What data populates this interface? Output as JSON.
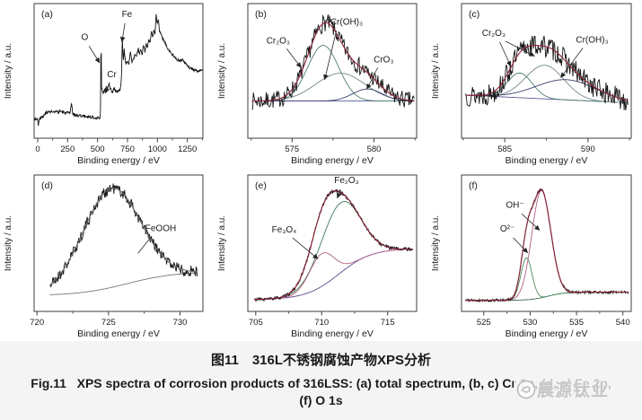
{
  "caption": {
    "zh": "图11　316L不锈钢腐蚀产物XPS分析",
    "en_line1": "Fig.11   XPS spectra of corrosion products of 316LSS: (a) total spectrum, (b, c) Cr 2p, (d, e) Fe 2p,",
    "en_line2": "(f) O 1s"
  },
  "watermark": {
    "text": "晨源钛业",
    "logo": "swirl-logo"
  },
  "chart_data": [
    {
      "id": "a",
      "type": "line",
      "panel_label": "(a)",
      "row": 1,
      "xlabel": "Binding energy / eV",
      "ylabel": "Intensity / a.u.",
      "xlim": [
        -30,
        1380
      ],
      "ylim": [
        -0.05,
        1.0
      ],
      "xticks": [
        0,
        250,
        500,
        750,
        1000,
        1250
      ],
      "xticks_minor": [
        125,
        375,
        625,
        875,
        1125,
        1375
      ],
      "data_color": "#141414",
      "noise": 0.012,
      "seed": 3,
      "samples": 440,
      "anchors": [
        [
          0,
          0.1
        ],
        [
          6,
          0.05
        ],
        [
          12,
          0.09
        ],
        [
          25,
          0.11
        ],
        [
          50,
          0.12
        ],
        [
          70,
          0.155
        ],
        [
          90,
          0.15
        ],
        [
          110,
          0.16
        ],
        [
          130,
          0.15
        ],
        [
          150,
          0.155
        ],
        [
          170,
          0.15
        ],
        [
          190,
          0.165
        ],
        [
          210,
          0.15
        ],
        [
          230,
          0.148
        ],
        [
          250,
          0.145
        ],
        [
          270,
          0.143
        ],
        [
          283,
          0.23
        ],
        [
          292,
          0.14
        ],
        [
          320,
          0.13
        ],
        [
          360,
          0.125
        ],
        [
          400,
          0.12
        ],
        [
          450,
          0.115
        ],
        [
          490,
          0.11
        ],
        [
          515,
          0.105
        ],
        [
          524,
          0.12
        ],
        [
          529,
          0.78
        ],
        [
          534,
          0.34
        ],
        [
          545,
          0.3
        ],
        [
          558,
          0.32
        ],
        [
          572,
          0.355
        ],
        [
          582,
          0.33
        ],
        [
          596,
          0.37
        ],
        [
          608,
          0.33
        ],
        [
          625,
          0.31
        ],
        [
          640,
          0.34
        ],
        [
          655,
          0.31
        ],
        [
          672,
          0.315
        ],
        [
          690,
          0.33
        ],
        [
          700,
          0.42
        ],
        [
          707,
          0.73
        ],
        [
          711,
          0.62
        ],
        [
          716,
          0.56
        ],
        [
          722,
          0.66
        ],
        [
          727,
          0.585
        ],
        [
          736,
          0.53
        ],
        [
          748,
          0.55
        ],
        [
          760,
          0.525
        ],
        [
          775,
          0.62
        ],
        [
          786,
          0.55
        ],
        [
          800,
          0.565
        ],
        [
          812,
          0.6
        ],
        [
          825,
          0.575
        ],
        [
          840,
          0.66
        ],
        [
          850,
          0.6
        ],
        [
          860,
          0.645
        ],
        [
          872,
          0.605
        ],
        [
          884,
          0.68
        ],
        [
          896,
          0.625
        ],
        [
          906,
          0.7
        ],
        [
          917,
          0.655
        ],
        [
          927,
          0.72
        ],
        [
          938,
          0.685
        ],
        [
          950,
          0.78
        ],
        [
          960,
          0.73
        ],
        [
          970,
          0.8
        ],
        [
          980,
          0.75
        ],
        [
          989,
          0.92
        ],
        [
          998,
          0.85
        ],
        [
          1008,
          0.87
        ],
        [
          1016,
          0.79
        ],
        [
          1028,
          0.77
        ],
        [
          1042,
          0.73
        ],
        [
          1058,
          0.705
        ],
        [
          1078,
          0.665
        ],
        [
          1098,
          0.635
        ],
        [
          1125,
          0.605
        ],
        [
          1155,
          0.575
        ],
        [
          1185,
          0.555
        ],
        [
          1210,
          0.56
        ],
        [
          1240,
          0.525
        ],
        [
          1270,
          0.5
        ],
        [
          1300,
          0.485
        ],
        [
          1330,
          0.475
        ],
        [
          1350,
          0.48
        ]
      ],
      "annotations": [
        {
          "text": "O",
          "tx": 0.3,
          "ty": 0.27,
          "lines": [
            {
              "x1": 0.325,
              "y1": 0.315,
              "x2": 0.388,
              "y2": 0.44,
              "arrow": true
            }
          ]
        },
        {
          "text": "Fe",
          "tx": 0.55,
          "ty": 0.1,
          "lines": [
            {
              "x1": 0.538,
              "y1": 0.145,
              "x2": 0.52,
              "y2": 0.285,
              "arrow": true
            }
          ]
        },
        {
          "text": "Cr",
          "tx": 0.46,
          "ty": 0.545,
          "lines": [
            {
              "x1": 0.448,
              "y1": 0.585,
              "x2": 0.422,
              "y2": 0.665,
              "arrow": true
            }
          ]
        }
      ]
    },
    {
      "id": "b",
      "type": "line",
      "panel_label": "(b)",
      "row": 1,
      "xlabel": "Binding energy / eV",
      "ylabel": "Intensity / a.u.",
      "xlim": [
        572.3,
        582.6
      ],
      "ylim": [
        -0.3,
        1.15
      ],
      "xticks": [
        575,
        580
      ],
      "xticks_minor": [
        572.5,
        577.5,
        582.5
      ],
      "x_domain": [
        572.55,
        582.45
      ],
      "data_color": "#141414",
      "noise": 0.095,
      "seed": 7,
      "samples": 215,
      "envelope_color": "#8c2236",
      "baseline": {
        "kind": "line",
        "y0": 0.1,
        "y1": 0.1,
        "color": "#5a5f95"
      },
      "peaks": [
        {
          "name": "Cr2O3",
          "center": 576.9,
          "amp": 0.6,
          "sigma": 0.95,
          "color": "#4e7d74"
        },
        {
          "name": "Cr(OH)3",
          "center": 577.95,
          "amp": 0.3,
          "sigma": 1.5,
          "color": "#74898a"
        },
        {
          "name": "CrO3",
          "center": 579.6,
          "amp": 0.13,
          "sigma": 0.9,
          "color": "#3c4070"
        }
      ],
      "annotations": [
        {
          "text": "Cr₂O₃",
          "tx": 0.18,
          "ty": 0.295,
          "lines": [
            {
              "x1": 0.23,
              "y1": 0.335,
              "x2": 0.315,
              "y2": 0.475,
              "arrow": true
            }
          ]
        },
        {
          "text": "Cr(OH)₃",
          "tx": 0.585,
          "ty": 0.155,
          "lines": [
            {
              "x1": 0.525,
              "y1": 0.2,
              "x2": 0.455,
              "y2": 0.565,
              "arrow": true
            }
          ]
        },
        {
          "text": "CrO₃",
          "tx": 0.805,
          "ty": 0.435,
          "lines": [
            {
              "x1": 0.77,
              "y1": 0.475,
              "x2": 0.705,
              "y2": 0.635,
              "arrow": true
            }
          ]
        }
      ]
    },
    {
      "id": "c",
      "type": "line",
      "panel_label": "(c)",
      "row": 1,
      "xlabel": "Binding energy / eV",
      "ylabel": "Intensity / a.u.",
      "xlim": [
        582.4,
        592.6
      ],
      "ylim": [
        -0.28,
        0.92
      ],
      "xticks": [
        585,
        590
      ],
      "xticks_minor": [
        582.5,
        587.5,
        592.5
      ],
      "x_domain": [
        582.65,
        592.4
      ],
      "data_color": "#141414",
      "noise": 0.1,
      "seed": 13,
      "samples": 215,
      "envelope_color": "#8c2236",
      "baseline": {
        "kind": "line",
        "y0": 0.105,
        "y1": 0.035,
        "color": "#5a5f95"
      },
      "peaks": [
        {
          "name": "Cr2O3",
          "center": 585.9,
          "amp": 0.22,
          "sigma": 0.75,
          "color": "#4e7d74"
        },
        {
          "name": "Cr2O3b",
          "center": 587.4,
          "amp": 0.3,
          "sigma": 1.15,
          "color": "#74898a"
        },
        {
          "name": "Cr(OH)3",
          "center": 588.7,
          "amp": 0.18,
          "sigma": 1.8,
          "color": "#3c4070"
        }
      ],
      "annotations": [
        {
          "text": "Cr₂O₃",
          "tx": 0.19,
          "ty": 0.24,
          "lines": [
            {
              "x1": 0.225,
              "y1": 0.285,
              "x2": 0.29,
              "y2": 0.465,
              "arrow": true
            },
            {
              "x1": 0.26,
              "y1": 0.28,
              "x2": 0.43,
              "y2": 0.39,
              "arrow": true
            }
          ]
        },
        {
          "text": "Cr(OH)₃",
          "tx": 0.77,
          "ty": 0.29,
          "lines": [
            {
              "x1": 0.715,
              "y1": 0.33,
              "x2": 0.585,
              "y2": 0.55,
              "arrow": true
            }
          ]
        }
      ]
    },
    {
      "id": "d",
      "type": "line",
      "panel_label": "(d)",
      "row": 2,
      "xlabel": "Binding energy / eV",
      "ylabel": "Intensity / a.u.",
      "xlim": [
        719.8,
        731.6
      ],
      "ylim": [
        -0.08,
        1.05
      ],
      "xticks": [
        720,
        725,
        730
      ],
      "xticks_minor": [
        722.5,
        727.5
      ],
      "x_domain": [
        720.9,
        731.2
      ],
      "data_color": "#141414",
      "noise": 0.048,
      "seed": 21,
      "samples": 260,
      "envelope_color": "#6e6e6e",
      "baseline": {
        "kind": "sigmoid",
        "y0": 0.05,
        "y1": 0.25,
        "x0": 726.3,
        "w": 1.7,
        "color": "#787878"
      },
      "peaks": [
        {
          "name": "FeOOH",
          "center": 725.2,
          "amp": 0.82,
          "sigma": 2.0,
          "color": null
        }
      ],
      "annotations": [
        {
          "text": "FeOOH",
          "tx": 0.75,
          "ty": 0.41,
          "lines": [
            {
              "x1": 0.695,
              "y1": 0.45,
              "x2": 0.615,
              "y2": 0.575,
              "arrow": false
            }
          ]
        }
      ]
    },
    {
      "id": "e",
      "type": "line",
      "panel_label": "(e)",
      "row": 2,
      "xlabel": "Binding energy / eV",
      "ylabel": "Intensity / a.u.",
      "xlim": [
        704.4,
        717.2
      ],
      "ylim": [
        -0.07,
        1.1
      ],
      "xticks": [
        705,
        710,
        715
      ],
      "xticks_minor": [
        707.5,
        712.5
      ],
      "x_domain": [
        704.9,
        716.9
      ],
      "data_color": "#141414",
      "noise": 0.014,
      "seed": 33,
      "samples": 320,
      "envelope_color": "#8c2236",
      "baseline": {
        "kind": "sigmoid",
        "y0": 0.03,
        "y1": 0.47,
        "x0": 711.3,
        "w": 1.25,
        "color": "#5d4b8c"
      },
      "peaks": [
        {
          "name": "Fe2O3",
          "center": 711.4,
          "amp": 0.6,
          "sigma": 1.5,
          "color": "#3e7b58"
        },
        {
          "name": "Fe3O4",
          "center": 710.0,
          "amp": 0.28,
          "sigma": 0.95,
          "color": "#b4608a"
        }
      ],
      "annotations": [
        {
          "text": "Fe₂O₃",
          "tx": 0.585,
          "ty": 0.06,
          "lines": [
            {
              "x1": 0.55,
              "y1": 0.105,
              "x2": 0.53,
              "y2": 0.17,
              "arrow": true
            }
          ]
        },
        {
          "text": "Fe₃O₄",
          "tx": 0.215,
          "ty": 0.42,
          "lines": [
            {
              "x1": 0.265,
              "y1": 0.46,
              "x2": 0.415,
              "y2": 0.615,
              "arrow": true
            }
          ]
        }
      ]
    },
    {
      "id": "f",
      "type": "line",
      "panel_label": "(f)",
      "row": 2,
      "xlabel": "Binding energy / eV",
      "ylabel": "Intensity / a.u.",
      "xlim": [
        522.6,
        540.9
      ],
      "ylim": [
        -0.07,
        1.1
      ],
      "xticks": [
        525,
        530,
        535,
        540
      ],
      "xticks_minor": [
        527.5,
        532.5,
        537.5
      ],
      "x_domain": [
        523.0,
        540.6
      ],
      "data_color": "#141414",
      "noise": 0.011,
      "seed": 41,
      "samples": 330,
      "envelope_color": "#8c2236",
      "baseline": {
        "kind": "sigmoid",
        "y0": 0.025,
        "y1": 0.095,
        "x0": 531.9,
        "w": 0.9,
        "color": "#3e6b52"
      },
      "peaks": [
        {
          "name": "OH-",
          "center": 531.2,
          "amp": 0.92,
          "sigma": 1.02,
          "color": "#b4608a"
        },
        {
          "name": "O2-",
          "center": 529.6,
          "amp": 0.36,
          "sigma": 0.6,
          "color": "#4d8a60"
        }
      ],
      "annotations": [
        {
          "text": "OH⁻",
          "tx": 0.315,
          "ty": 0.24,
          "lines": [
            {
              "x1": 0.355,
              "y1": 0.285,
              "x2": 0.46,
              "y2": 0.405,
              "arrow": true
            }
          ]
        },
        {
          "text": "O²⁻",
          "tx": 0.27,
          "ty": 0.415,
          "lines": [
            {
              "x1": 0.305,
              "y1": 0.46,
              "x2": 0.39,
              "y2": 0.57,
              "arrow": true
            }
          ]
        }
      ]
    }
  ]
}
